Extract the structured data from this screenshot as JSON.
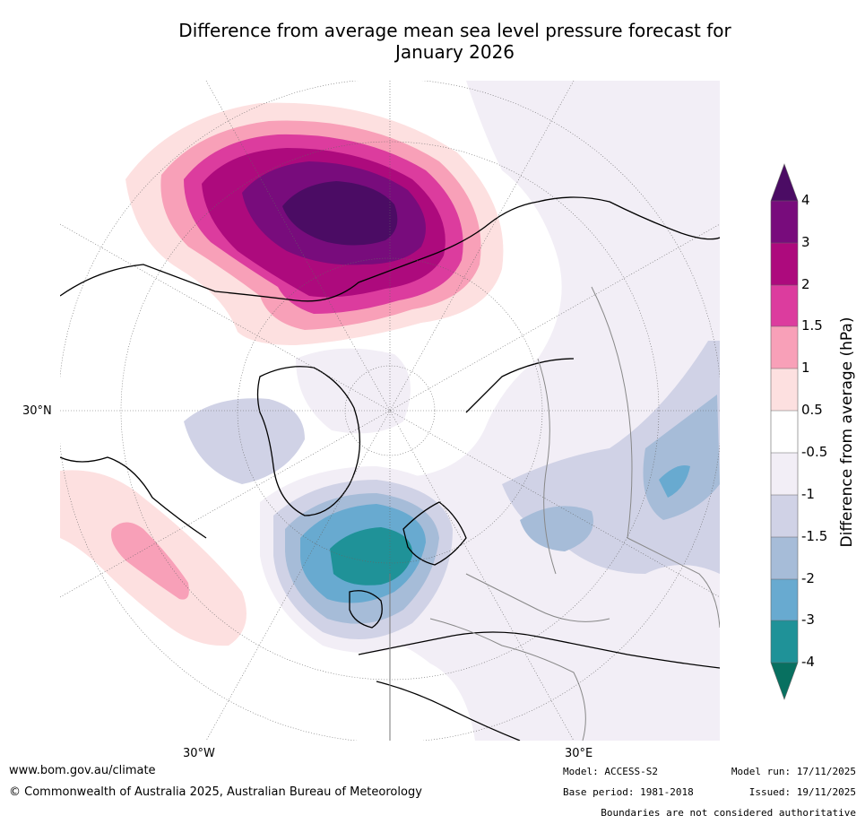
{
  "title": {
    "line1": "Difference from average mean sea level pressure forecast for",
    "line2": "January 2026"
  },
  "map": {
    "projection": "polar-stereographic-north",
    "lat_labels": [
      "30°N"
    ],
    "lon_labels": [
      "30°W",
      "30°E"
    ],
    "regions": [
      {
        "name": "arctic-alaska-high",
        "range": "3 to 4 hPa"
      },
      {
        "name": "north-atlantic-low",
        "range": "-3 to -4 hPa"
      },
      {
        "name": "north-pacific-high",
        "range": "1 to 1.5 hPa"
      }
    ]
  },
  "colorbar": {
    "title": "Difference from average (hPa)",
    "ticks": [
      "4",
      "3",
      "2",
      "1.5",
      "1",
      "0.5",
      "-0.5",
      "-1",
      "-1.5",
      "-2",
      "-3",
      "-4"
    ],
    "colors": {
      "over": "#4b0c64",
      "c4_3": "#780c7c",
      "c3_2": "#ad0a7d",
      "c2_15": "#dc3c9e",
      "c15_1": "#f8a0b8",
      "c1_05": "#fde0e0",
      "c05_m05": "#ffffff",
      "cm05_m1": "#f2eef6",
      "cm1_m15": "#d0d2e6",
      "cm15_m2": "#a6bcd8",
      "cm2_m3": "#68aad0",
      "cm3_m4": "#1f9298",
      "under": "#087060"
    }
  },
  "footer": {
    "website": "www.bom.gov.au/climate",
    "copyright": "© Commonwealth of Australia 2025, Australian Bureau of Meteorology",
    "model": "Model: ACCESS-S2",
    "base_period": "Base period: 1981-2018",
    "model_run": "Model run: 17/11/2025",
    "issued": "Issued: 19/11/2025",
    "boundaries": "Boundaries are not considered authoritative"
  }
}
